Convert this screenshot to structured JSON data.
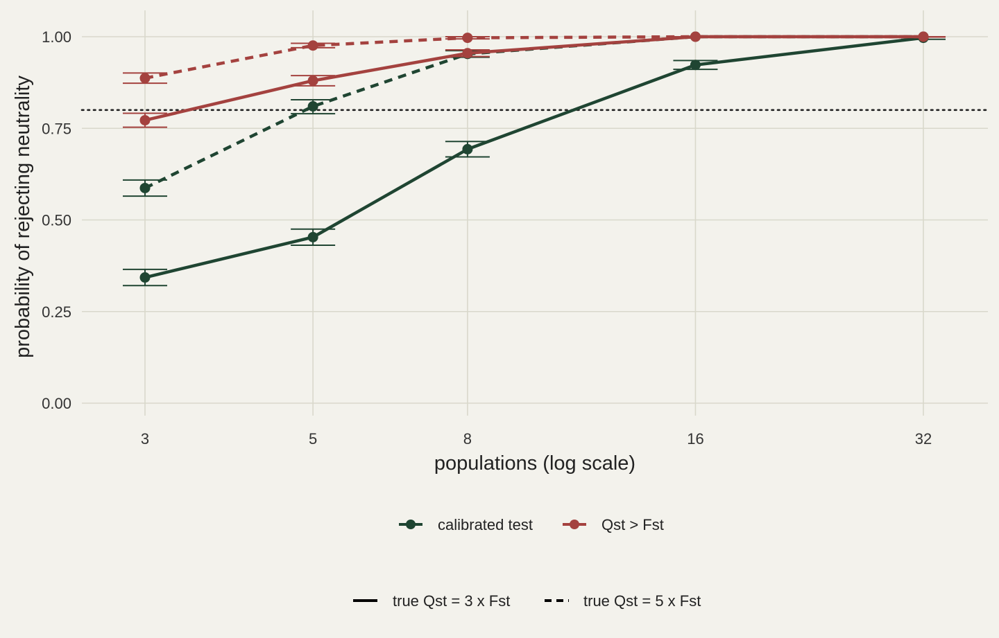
{
  "chart_data": {
    "type": "line",
    "xlabel": "populations (log scale)",
    "ylabel": "probability of rejecting neutrality",
    "x_scale": "log",
    "x": [
      3,
      5,
      8,
      16,
      32
    ],
    "x_tick_labels": [
      "3",
      "5",
      "8",
      "16",
      "32"
    ],
    "y_ticks": [
      0,
      0.25,
      0.5,
      0.75,
      1.0
    ],
    "y_tick_labels": [
      "0.00",
      "0.25",
      "0.50",
      "0.75",
      "1.00"
    ],
    "ylim": [
      0,
      1.0
    ],
    "reference_line": {
      "y": 0.8,
      "style": "dotted"
    },
    "grid": true,
    "series": [
      {
        "name": "calibrated test",
        "linetype": "solid",
        "color": "#1f4532",
        "values": [
          0.343,
          0.453,
          0.693,
          0.923,
          0.997
        ],
        "lower": [
          0.321,
          0.431,
          0.672,
          0.911,
          0.993
        ],
        "upper": [
          0.365,
          0.475,
          0.714,
          0.935,
          1.0
        ]
      },
      {
        "name": "calibrated test",
        "linetype": "dashed",
        "color": "#1f4532",
        "values": [
          0.587,
          0.81,
          0.953,
          1.0,
          1.0
        ],
        "lower": [
          0.565,
          0.79,
          0.944,
          0.998,
          0.999
        ],
        "upper": [
          0.609,
          0.828,
          0.962,
          1.0,
          1.0
        ]
      },
      {
        "name": "Qst > Fst",
        "linetype": "solid",
        "color": "#a4423f",
        "values": [
          0.772,
          0.88,
          0.955,
          1.0,
          1.0
        ],
        "lower": [
          0.753,
          0.866,
          0.946,
          0.998,
          0.999
        ],
        "upper": [
          0.791,
          0.894,
          0.964,
          1.0,
          1.0
        ]
      },
      {
        "name": "Qst > Fst",
        "linetype": "dashed",
        "color": "#a4423f",
        "values": [
          0.887,
          0.976,
          0.997,
          1.0,
          1.0
        ],
        "lower": [
          0.873,
          0.97,
          0.994,
          0.999,
          0.999
        ],
        "upper": [
          0.901,
          0.982,
          1.0,
          1.0,
          1.0
        ]
      }
    ],
    "legend": {
      "placement": "bottom",
      "color_entries": [
        {
          "label": "calibrated test",
          "color": "#1f4532"
        },
        {
          "label": "Qst > Fst",
          "color": "#a4423f"
        }
      ],
      "linetype_entries": [
        {
          "label": "true Qst = 3 x Fst",
          "linetype": "solid"
        },
        {
          "label": "true Qst = 5 x Fst",
          "linetype": "dashed"
        }
      ]
    },
    "colors": {
      "background": "#f3f2ec",
      "grid": "#d9d8cb",
      "text": "#333333"
    }
  }
}
